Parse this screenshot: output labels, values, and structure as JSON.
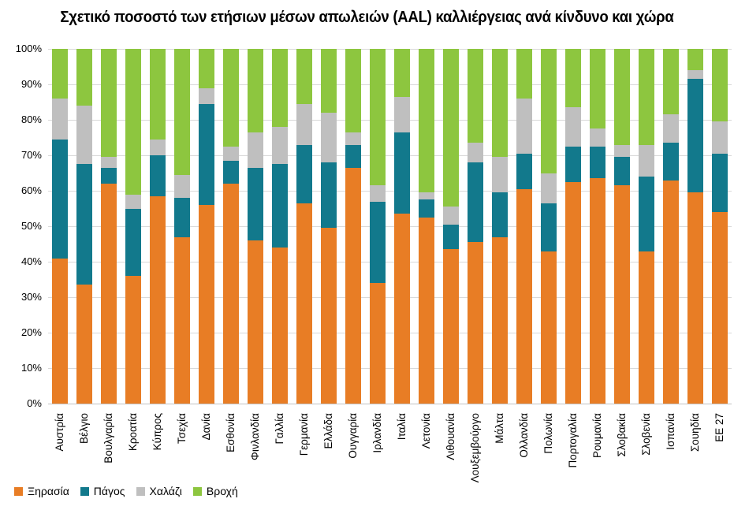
{
  "title": "Σχετικό ποσοστό των ετήσιων μέσων απωλειών (AAL) καλλιέργειας ανά κίνδυνο και χώρα",
  "colors": {
    "drought": "#E87D25",
    "frost": "#12798C",
    "hail": "#BFBFBF",
    "rain": "#8DC63F",
    "gridline": "#D9D9D9",
    "axis_line": "#C3C3C3"
  },
  "y_axis": {
    "tick_labels": [
      "100%",
      "90%",
      "80%",
      "70%",
      "60%",
      "50%",
      "40%",
      "30%",
      "20%",
      "10%",
      "0%"
    ]
  },
  "legend": [
    {
      "label": "Ξηρασία",
      "color": "#E87D25"
    },
    {
      "label": "Πάγος",
      "color": "#12798C"
    },
    {
      "label": "Χαλάζι",
      "color": "#BFBFBF"
    },
    {
      "label": "Βροχή",
      "color": "#8DC63F"
    }
  ],
  "chart_data": {
    "type": "bar",
    "stacked": true,
    "percent": true,
    "title": "Σχετικό ποσοστό των ετήσιων μέσων απωλειών (AAL) καλλιέργειας ανά κίνδυνο και χώρα",
    "xlabel": "",
    "ylabel": "",
    "ylim": [
      0,
      100
    ],
    "grid": true,
    "legend_position": "bottom-left",
    "categories": [
      "Αυστρία",
      "Βέλγιο",
      "Βουλγαρία",
      "Κροατία",
      "Κύπρος",
      "Τσεχία",
      "Δανία",
      "Εσθονία",
      "Φινλανδία",
      "Γαλλία",
      "Γερμανία",
      "Ελλάδα",
      "Ουγγαρία",
      "Ιρλανδία",
      "Ιταλία",
      "Λετονία",
      "Λιθουανία",
      "Λουξεμβούργο",
      "Μάλτα",
      "Ολλανδία",
      "Πολωνία",
      "Πορτογαλία",
      "Ρουμανία",
      "Σλοβακία",
      "Σλοβενία",
      "Ισπανία",
      "Σουηδία",
      "ΕΕ 27"
    ],
    "series": [
      {
        "name": "Ξηρασία",
        "color": "#E87D25",
        "values": [
          41,
          33.5,
          62,
          36,
          58.5,
          47,
          56,
          62,
          46,
          44,
          56.5,
          49.5,
          66.5,
          34,
          53.5,
          52.5,
          43.5,
          45.5,
          47,
          60.5,
          43,
          62.5,
          63.5,
          61.5,
          43,
          63,
          59.5,
          54
        ]
      },
      {
        "name": "Πάγος",
        "color": "#12798C",
        "values": [
          33.5,
          34,
          4.5,
          19,
          11.5,
          11,
          28.5,
          6.5,
          20.5,
          23.5,
          16.5,
          18.5,
          6.5,
          23,
          23,
          5,
          7,
          22.5,
          12.5,
          10,
          13.5,
          10,
          9,
          8,
          21,
          10.5,
          32,
          16.5
        ]
      },
      {
        "name": "Χαλάζι",
        "color": "#BFBFBF",
        "values": [
          11.5,
          16.5,
          3,
          4,
          4.5,
          6.5,
          4.5,
          4,
          10,
          10.5,
          11.5,
          14,
          3.5,
          4.5,
          10,
          2,
          5,
          5.5,
          10,
          15.5,
          8.5,
          11,
          5,
          3.5,
          9,
          8,
          2.5,
          9
        ]
      },
      {
        "name": "Βροχή",
        "color": "#8DC63F",
        "values": [
          14,
          16,
          30.5,
          41,
          25.5,
          35.5,
          11,
          27.5,
          23.5,
          22,
          15.5,
          18,
          23.5,
          38.5,
          13.5,
          40.5,
          44.5,
          26.5,
          30.5,
          14,
          35,
          16.5,
          22.5,
          27,
          27,
          18.5,
          6,
          20.5
        ]
      }
    ]
  }
}
